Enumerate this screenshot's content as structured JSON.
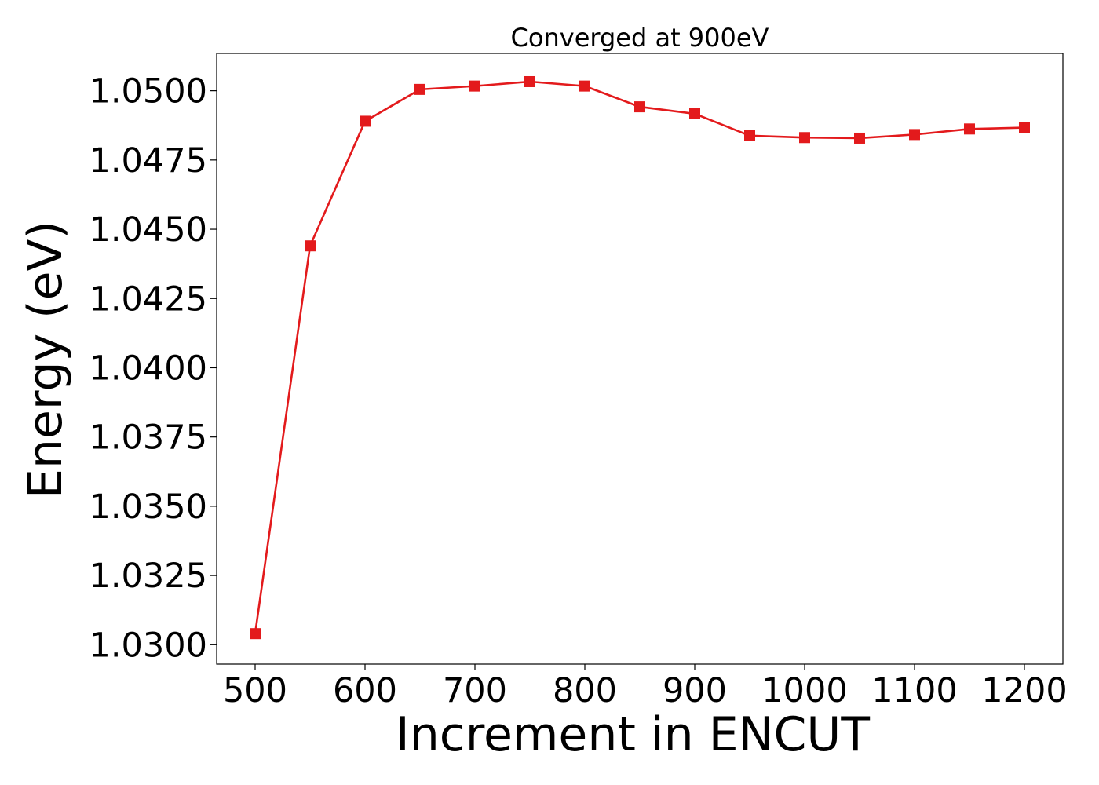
{
  "chart_data": {
    "type": "line",
    "title": "Converged at 900eV",
    "xlabel": "Increment in ENCUT",
    "ylabel": "Energy (eV)",
    "xlim": [
      465,
      1235
    ],
    "ylim": [
      1.0293,
      1.05135
    ],
    "x_ticks": [
      500,
      600,
      700,
      800,
      900,
      1000,
      1100,
      1200
    ],
    "x_tick_labels": [
      "500",
      "600",
      "700",
      "800",
      "900",
      "1000",
      "1100",
      "1200"
    ],
    "y_ticks": [
      1.03,
      1.0325,
      1.035,
      1.0375,
      1.04,
      1.0425,
      1.045,
      1.0475,
      1.05
    ],
    "y_tick_labels": [
      "1.0300",
      "1.0325",
      "1.0350",
      "1.0375",
      "1.0400",
      "1.0425",
      "1.0450",
      "1.0475",
      "1.0500"
    ],
    "grid": false,
    "series": [
      {
        "color": "#e31a1c",
        "marker": "square",
        "x": [
          500,
          550,
          600,
          650,
          700,
          750,
          800,
          850,
          900,
          950,
          1000,
          1050,
          1100,
          1150,
          1200
        ],
        "y": [
          1.0304,
          1.0444,
          1.0489,
          1.05005,
          1.05017,
          1.05033,
          1.05017,
          1.04942,
          1.04917,
          1.04838,
          1.04831,
          1.04829,
          1.04842,
          1.04862,
          1.04867
        ]
      }
    ]
  }
}
